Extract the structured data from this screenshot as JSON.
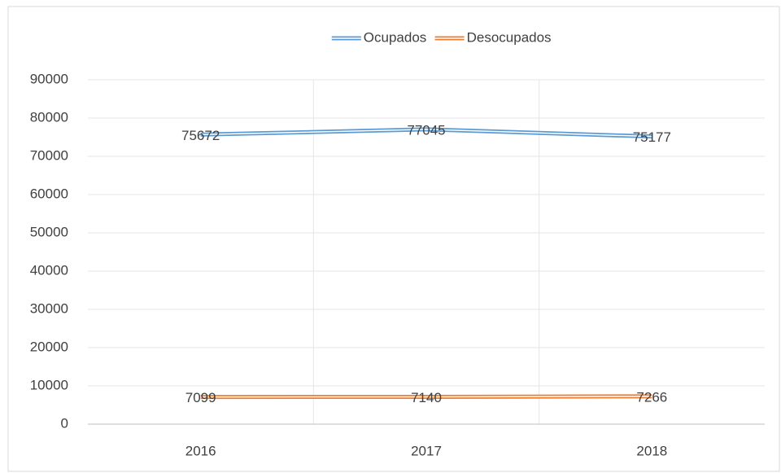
{
  "chart_data": {
    "type": "line",
    "categories": [
      "2016",
      "2017",
      "2018"
    ],
    "series": [
      {
        "name": "Ocupados",
        "color": "#5b9bd5",
        "values": [
          75672,
          77045,
          75177
        ]
      },
      {
        "name": "Desocupados",
        "color": "#ed7d31",
        "values": [
          7099,
          7140,
          7266
        ]
      }
    ],
    "ylim": [
      0,
      90000
    ],
    "yticks": [
      0,
      10000,
      20000,
      30000,
      40000,
      50000,
      60000,
      70000,
      80000,
      90000
    ],
    "grid": true,
    "legend": "top"
  }
}
